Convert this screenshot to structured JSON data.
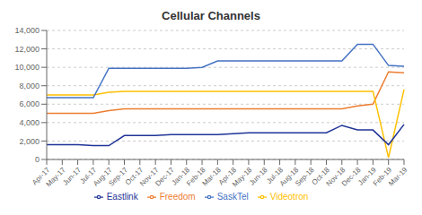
{
  "chart_data": {
    "type": "line",
    "title": "Cellular Channels",
    "categories": [
      "Apr-17",
      "May-17",
      "Jun-17",
      "Jul-17",
      "Aug-17",
      "Sep-17",
      "Oct-17",
      "Nov-17",
      "Dec-17",
      "Jan-18",
      "Feb-18",
      "Mar-18",
      "Apr-18",
      "May-18",
      "Jun-18",
      "Jul-18",
      "Aug-18",
      "Sep-18",
      "Oct-18",
      "Nov-18",
      "Dec-18",
      "Jan-19",
      "Feb-19",
      "Mar-19"
    ],
    "series": [
      {
        "name": "Freedom",
        "color": "#ED7D31",
        "values": [
          5000,
          5000,
          5000,
          5000,
          5300,
          5500,
          5500,
          5500,
          5500,
          5500,
          5500,
          5500,
          5500,
          5500,
          5500,
          5500,
          5500,
          5500,
          5500,
          5500,
          5800,
          6000,
          9500,
          9400
        ]
      },
      {
        "name": "Videotron",
        "color": "#FFC000",
        "values": [
          7000,
          7000,
          7000,
          7000,
          7300,
          7400,
          7400,
          7400,
          7400,
          7400,
          7400,
          7400,
          7400,
          7400,
          7400,
          7400,
          7400,
          7400,
          7400,
          7400,
          7400,
          7400,
          200,
          7600
        ]
      },
      {
        "name": "SaskTel",
        "color": "#4472C4",
        "values": [
          6700,
          6700,
          6700,
          6700,
          9900,
          9900,
          9900,
          9900,
          9900,
          9900,
          10000,
          10700,
          10700,
          10700,
          10700,
          10700,
          10700,
          10700,
          10700,
          10700,
          12500,
          12500,
          10200,
          10100
        ]
      },
      {
        "name": "Eastlink",
        "color": "#1F3497",
        "values": [
          1600,
          1600,
          1600,
          1500,
          1500,
          2600,
          2600,
          2600,
          2700,
          2700,
          2700,
          2700,
          2800,
          2900,
          2900,
          2900,
          2900,
          2900,
          2900,
          3700,
          3200,
          3200,
          1600,
          3800
        ]
      }
    ],
    "ylim": [
      0,
      14000
    ],
    "yticks": [
      0,
      {
        "value": 2000,
        "label": "2,000"
      },
      {
        "value": 4000,
        "label": "4,000"
      },
      {
        "value": 6000,
        "label": "6,000"
      },
      {
        "value": 8000,
        "label": "8,000"
      },
      {
        "value": 10000,
        "label": "10,000"
      },
      {
        "value": 12000,
        "label": "12,000"
      },
      {
        "value": 14000,
        "label": "14,000"
      }
    ],
    "grid": true,
    "legend": "bottom"
  }
}
